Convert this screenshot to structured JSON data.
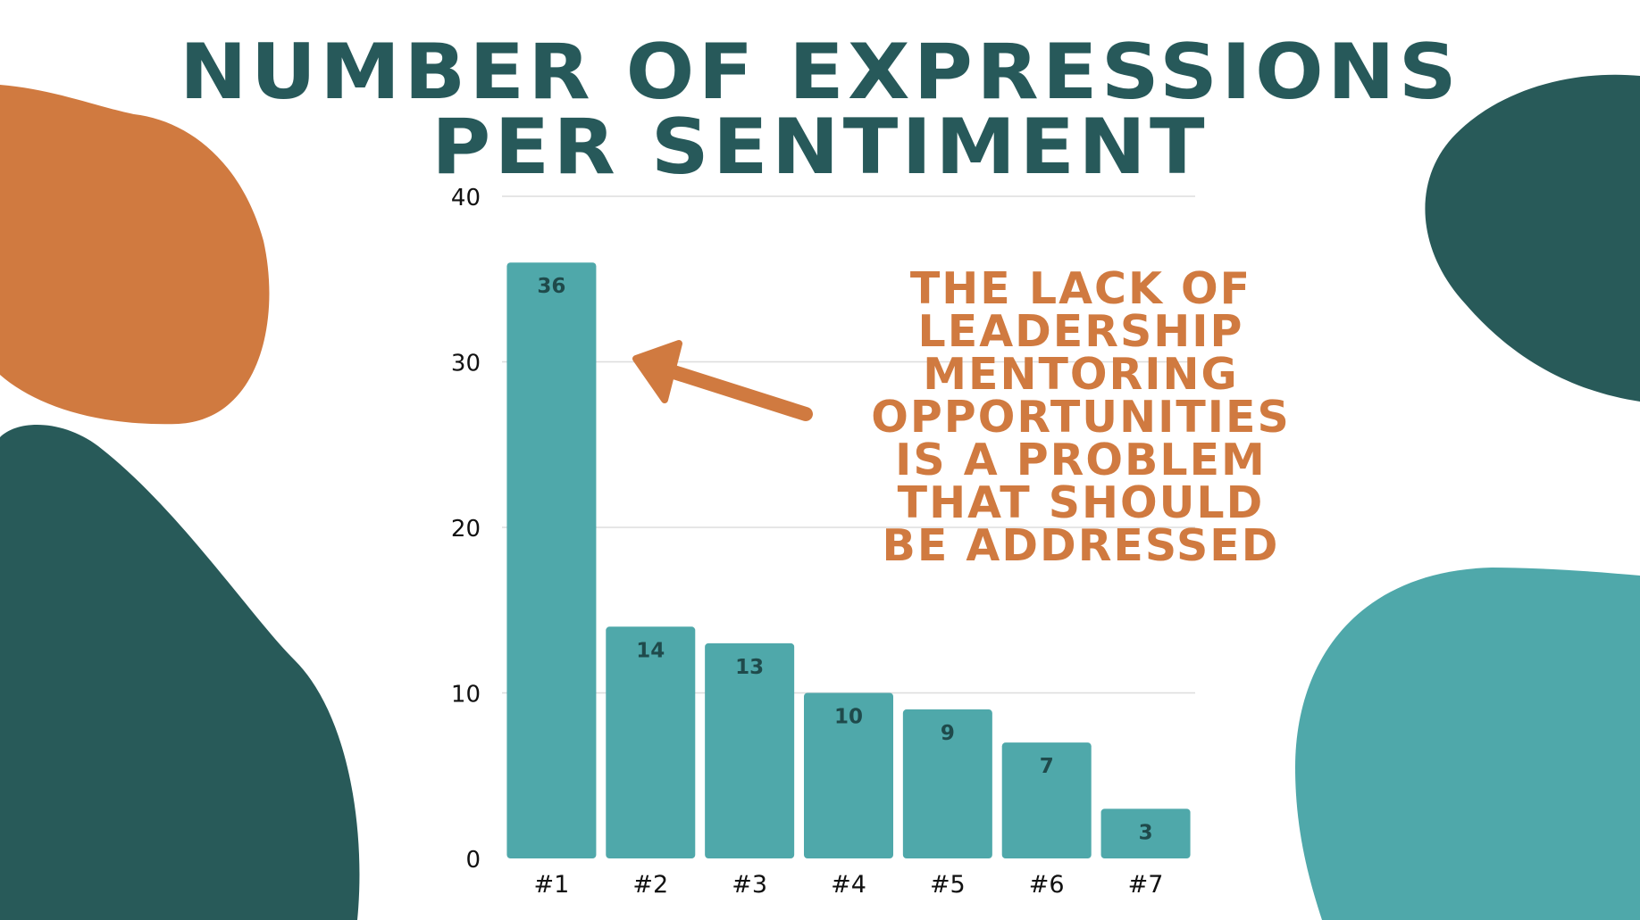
{
  "title": {
    "line1": "NUMBER OF EXPRESSIONS",
    "line2": "PER SENTIMENT"
  },
  "annotation": {
    "lines": [
      "THE LACK OF",
      "LEADERSHIP",
      "MENTORING",
      "OPPORTUNITIES",
      "IS A PROBLEM",
      "THAT SHOULD",
      "BE ADDRESSED"
    ],
    "arrow_target": "#1"
  },
  "colors": {
    "bar": "#4fa8aa",
    "title": "#27595a",
    "annotation": "#d07a40",
    "blob_orange": "#d07a40",
    "blob_dark": "#285a59",
    "blob_teal": "#4fa8aa",
    "grid": "#dddddd",
    "axis_text": "#111111",
    "bar_label": "#1f4a4b"
  },
  "chart_data": {
    "type": "bar",
    "title": "NUMBER OF EXPRESSIONS PER SENTIMENT",
    "categories": [
      "#1",
      "#2",
      "#3",
      "#4",
      "#5",
      "#6",
      "#7"
    ],
    "values": [
      36,
      14,
      13,
      10,
      9,
      7,
      3
    ],
    "xlabel": "",
    "ylabel": "",
    "ylim": [
      0,
      40
    ],
    "yticks": [
      0,
      10,
      20,
      30,
      40
    ],
    "grid": true,
    "data_labels": true
  }
}
